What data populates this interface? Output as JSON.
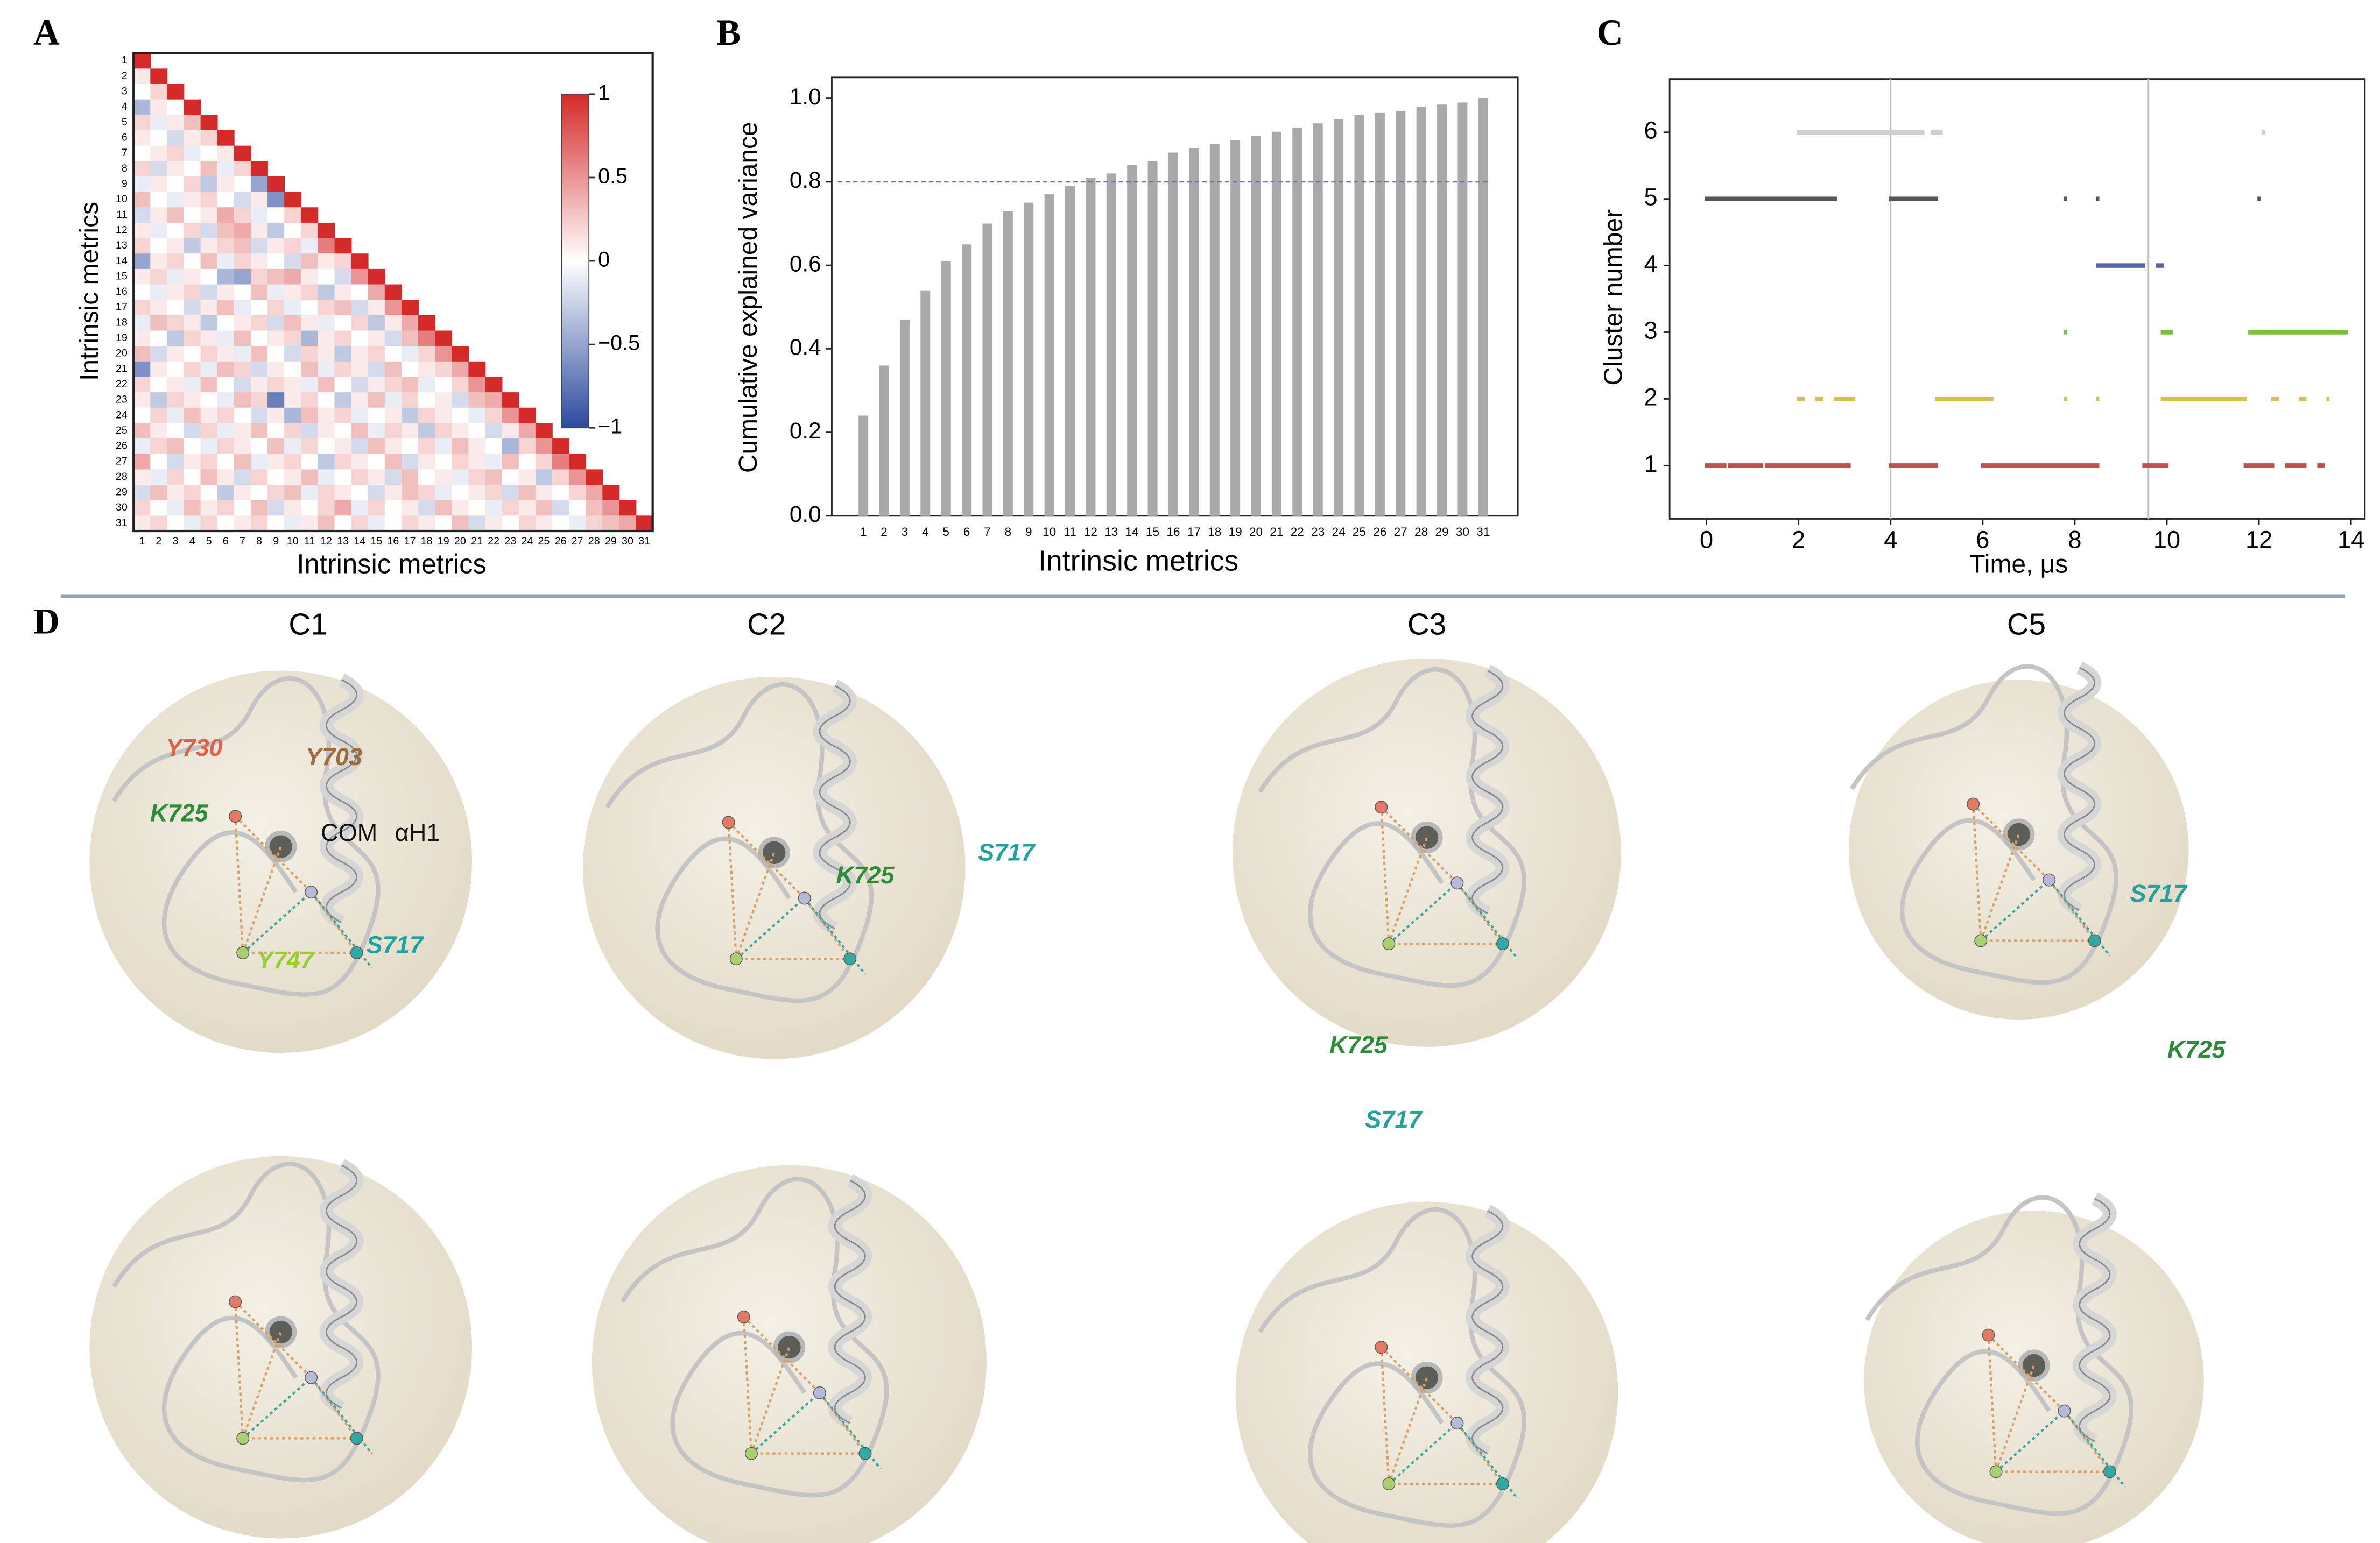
{
  "chart_data": [
    {
      "type": "heatmap",
      "panel": "A",
      "xlabel": "Intrinsic metrics",
      "ylabel": "Intrinsic metrics",
      "categories": [
        "1",
        "2",
        "3",
        "4",
        "5",
        "6",
        "7",
        "8",
        "9",
        "10",
        "11",
        "12",
        "13",
        "14",
        "15",
        "16",
        "17",
        "18",
        "19",
        "20",
        "21",
        "22",
        "23",
        "24",
        "25",
        "26",
        "27",
        "28",
        "29",
        "30",
        "31"
      ],
      "colorbar_ticks": [
        1,
        0.5,
        0,
        {
          "value": -0.5,
          "label": "−0.5"
        },
        {
          "value": -1,
          "label": "−1"
        }
      ],
      "clim": [
        -1,
        1
      ],
      "color_high": "#d42a2a",
      "color_low": "#2c4a9e",
      "values": [
        [
          1
        ],
        [
          0.1,
          1
        ],
        [
          0,
          0.2,
          1
        ],
        [
          -0.4,
          0.1,
          0,
          1
        ],
        [
          0.2,
          -0.1,
          0.1,
          0.3,
          1
        ],
        [
          0.1,
          0,
          -0.2,
          0.1,
          0.2,
          1
        ],
        [
          0,
          0.1,
          0.2,
          -0.1,
          0,
          0.1,
          1
        ],
        [
          0.2,
          -0.2,
          0.1,
          0,
          0.3,
          -0.1,
          0.2,
          1
        ],
        [
          -0.1,
          0.1,
          0,
          0.2,
          -0.3,
          0.1,
          0,
          -0.5,
          1
        ],
        [
          0.3,
          0,
          -0.1,
          0.1,
          0.2,
          0,
          -0.2,
          0.1,
          -0.6,
          1
        ],
        [
          -0.2,
          0.1,
          0.3,
          0,
          0.1,
          0.4,
          0.2,
          -0.1,
          0,
          0.2,
          1
        ],
        [
          0.1,
          -0.1,
          0,
          0.2,
          -0.2,
          0.3,
          0.4,
          0.1,
          -0.3,
          0,
          0.2,
          1
        ],
        [
          0.2,
          0,
          0.1,
          -0.3,
          0.1,
          0.2,
          0.3,
          -0.2,
          0.1,
          0.2,
          -0.1,
          0.6,
          1
        ],
        [
          -0.5,
          0.1,
          0.2,
          0,
          0.3,
          -0.1,
          0.2,
          0.1,
          0,
          -0.2,
          0.3,
          0.1,
          0.2,
          1
        ],
        [
          0.1,
          0.2,
          -0.1,
          0.1,
          0,
          -0.4,
          -0.5,
          0.2,
          0.3,
          0.4,
          0.1,
          0,
          -0.2,
          0.5,
          1
        ],
        [
          0,
          -0.1,
          0.1,
          0.2,
          -0.2,
          0.1,
          0,
          0.3,
          -0.1,
          0.1,
          0.2,
          -0.3,
          0.1,
          0,
          0.4,
          1
        ],
        [
          0.2,
          0.1,
          0,
          -0.2,
          0.1,
          0.3,
          -0.1,
          0,
          0.2,
          -0.1,
          0,
          0.2,
          0.3,
          -0.2,
          0.1,
          0.5,
          1
        ],
        [
          -0.1,
          0.3,
          0.2,
          0.1,
          -0.3,
          0,
          0.1,
          0.2,
          -0.2,
          0.3,
          0.1,
          -0.1,
          0,
          0.2,
          -0.3,
          0.1,
          0.4,
          1
        ],
        [
          0.1,
          0,
          -0.3,
          0.2,
          0.1,
          -0.1,
          0.3,
          0,
          0.1,
          0.2,
          -0.4,
          0.1,
          0.2,
          0,
          0.1,
          -0.2,
          0.3,
          0.6,
          1
        ],
        [
          0.3,
          -0.2,
          0.1,
          0,
          0.2,
          0.1,
          -0.1,
          0.3,
          0,
          -0.2,
          0.2,
          0.1,
          -0.3,
          0.1,
          0.2,
          0,
          -0.1,
          0.2,
          0.5,
          1
        ],
        [
          -0.6,
          0.1,
          0,
          0.2,
          -0.1,
          0.3,
          0.2,
          -0.2,
          0.1,
          0,
          0.3,
          -0.1,
          0.2,
          0.1,
          -0.2,
          0.3,
          0,
          0.1,
          0.2,
          0.4,
          1
        ],
        [
          0.2,
          0,
          0.1,
          -0.1,
          0.3,
          0,
          -0.2,
          0.1,
          0.2,
          0.1,
          -0.1,
          0.3,
          0,
          -0.2,
          0.1,
          0.2,
          0.3,
          -0.1,
          0,
          0.2,
          0.5,
          1
        ],
        [
          0.1,
          -0.3,
          0.2,
          0.1,
          0,
          -0.1,
          0.3,
          0.2,
          -0.7,
          0.1,
          0.2,
          0,
          -0.3,
          0.1,
          0.3,
          -0.1,
          0.2,
          0,
          0.1,
          -0.2,
          0.3,
          0.4,
          1
        ],
        [
          0,
          0.2,
          -0.1,
          0.3,
          0.1,
          0.2,
          0,
          -0.2,
          0.1,
          -0.4,
          0.3,
          0.1,
          0.2,
          -0.1,
          0,
          0.1,
          -0.3,
          0.2,
          0.1,
          0,
          -0.1,
          0.2,
          0.5,
          1
        ],
        [
          0.3,
          0.1,
          0,
          -0.2,
          0.2,
          -0.1,
          0.1,
          0.3,
          0,
          0.2,
          -0.2,
          0.1,
          0,
          0.3,
          -0.1,
          0.2,
          0.1,
          -0.3,
          0.2,
          0.1,
          0,
          -0.2,
          0.1,
          0.4,
          1
        ],
        [
          -0.1,
          0.2,
          0.3,
          0,
          -0.1,
          0.2,
          0.1,
          0,
          0.3,
          -0.1,
          0.2,
          0,
          0.1,
          -0.2,
          0.3,
          0.1,
          0,
          0.2,
          -0.1,
          0.3,
          0.1,
          0,
          -0.4,
          0.2,
          0.5,
          1
        ],
        [
          0.4,
          0,
          -0.2,
          0.1,
          0.2,
          0,
          0.3,
          -0.1,
          0.1,
          0.2,
          0,
          -0.3,
          0.2,
          0.1,
          0,
          0.3,
          -0.2,
          0.1,
          0,
          0.2,
          0.1,
          -0.1,
          0.3,
          0,
          0.2,
          0.6,
          1
        ],
        [
          0.1,
          -0.1,
          0.2,
          0,
          0.3,
          0.1,
          -0.2,
          0.2,
          0,
          0.1,
          0.3,
          -0.1,
          0,
          0.2,
          0.1,
          -0.2,
          0.3,
          0,
          0.1,
          -0.1,
          0.2,
          0.3,
          0,
          0.1,
          -0.3,
          0.2,
          0.5,
          1
        ],
        [
          -0.2,
          0.3,
          0.1,
          0.2,
          0,
          -0.3,
          0.1,
          0,
          0.2,
          0.3,
          -0.1,
          0.2,
          0.1,
          0,
          -0.2,
          0.1,
          0.3,
          0.2,
          -0.1,
          0,
          0.1,
          0.2,
          -0.2,
          0.3,
          0.1,
          0,
          0.2,
          0.4,
          1
        ],
        [
          0.2,
          0,
          -0.1,
          0.3,
          0.1,
          0.2,
          0,
          0.3,
          -0.2,
          0.1,
          0,
          0.2,
          0.4,
          -0.1,
          0.2,
          0,
          0.1,
          -0.2,
          0.3,
          0.1,
          0,
          -0.1,
          0.2,
          0.1,
          0.3,
          -0.2,
          0,
          0.3,
          0.5,
          1
        ],
        [
          0.1,
          0.2,
          0,
          -0.1,
          0.2,
          0,
          0.1,
          0.2,
          0,
          -0.1,
          0.1,
          0.3,
          0,
          0.2,
          -0.1,
          0,
          0.2,
          0.1,
          0,
          0.3,
          -0.2,
          0.1,
          0,
          0.2,
          0.1,
          0,
          -0.1,
          0.2,
          0.3,
          0.4,
          1
        ]
      ]
    },
    {
      "type": "bar",
      "panel": "B",
      "xlabel": "Intrinsic metrics",
      "ylabel": "Cumulative explained variance",
      "color": "#a9a9a9",
      "categories": [
        "1",
        "2",
        "3",
        "4",
        "5",
        "6",
        "7",
        "8",
        "9",
        "10",
        "11",
        "12",
        "13",
        "14",
        "15",
        "16",
        "17",
        "18",
        "19",
        "20",
        "21",
        "22",
        "23",
        "24",
        "25",
        "26",
        "27",
        "28",
        "29",
        "30",
        "31"
      ],
      "values": [
        0.24,
        0.36,
        0.47,
        0.54,
        0.61,
        0.65,
        0.7,
        0.73,
        0.75,
        0.77,
        0.79,
        0.81,
        0.82,
        0.84,
        0.85,
        0.87,
        0.88,
        0.89,
        0.9,
        0.91,
        0.92,
        0.93,
        0.94,
        0.95,
        0.96,
        0.965,
        0.97,
        0.98,
        0.985,
        0.99,
        1.0
      ],
      "threshold": 0.8,
      "threshold_color": "#6677bb",
      "ylim": [
        0,
        1.05
      ],
      "yticks": [
        {
          "value": 0,
          "label": "0.0"
        },
        0.2,
        0.4,
        0.6,
        0.8,
        {
          "value": 1,
          "label": "1.0"
        }
      ]
    },
    {
      "type": "timeline",
      "panel": "C",
      "xlabel": "Time, μs",
      "ylabel": "Cluster number",
      "xlim": [
        -0.8,
        14.3
      ],
      "xticks": [
        0,
        2,
        4,
        6,
        8,
        10,
        12,
        14
      ],
      "ylim": [
        0.2,
        6.8
      ],
      "yticks": [
        1,
        2,
        3,
        4,
        5,
        6
      ],
      "markers": [
        4,
        9.6
      ],
      "series": [
        {
          "cluster": 1,
          "color": "#c0504d",
          "intervals": [
            [
              0,
              0.4
            ],
            [
              0.5,
              1.2
            ],
            [
              1.3,
              3.1
            ],
            [
              4,
              5
            ],
            [
              6,
              8.5
            ],
            [
              9.5,
              10
            ],
            [
              11.7,
              12.3
            ],
            [
              12.6,
              13
            ],
            [
              13.3,
              13.4
            ]
          ]
        },
        {
          "cluster": 2,
          "color": "#d4c24a",
          "intervals": [
            [
              2,
              2.1
            ],
            [
              2.4,
              2.5
            ],
            [
              2.8,
              3.2
            ],
            [
              5,
              6.2
            ],
            [
              7.8,
              7.8
            ],
            [
              8.5,
              8.5
            ],
            [
              9.9,
              11.7
            ],
            [
              12.3,
              12.4
            ],
            [
              12.9,
              13
            ],
            [
              13.5,
              13.5
            ]
          ]
        },
        {
          "cluster": 3,
          "color": "#7cbf4a",
          "intervals": [
            [
              7.8,
              7.8
            ],
            [
              9.9,
              10.1
            ],
            [
              11.8,
              13.9
            ]
          ]
        },
        {
          "cluster": 4,
          "color": "#5a64a8",
          "intervals": [
            [
              8.5,
              9.5
            ],
            [
              9.8,
              9.9
            ]
          ]
        },
        {
          "cluster": 5,
          "color": "#555555",
          "intervals": [
            [
              0,
              2.8
            ],
            [
              4,
              5
            ],
            [
              7.8,
              7.8
            ],
            [
              8.5,
              8.5
            ],
            [
              12,
              12
            ]
          ]
        },
        {
          "cluster": 6,
          "color": "#cfcfcf",
          "intervals": [
            [
              2,
              4.7
            ],
            [
              4.9,
              5.1
            ],
            [
              12.1,
              12.1
            ]
          ]
        }
      ]
    }
  ],
  "panel_d": {
    "label": "D",
    "conformations": [
      {
        "title": "C1",
        "residues": [
          {
            "text": "Y730",
            "color": "#e0604c"
          },
          {
            "text": "Y703",
            "color": "#9c6c40"
          },
          {
            "text": "K725",
            "color": "#2e8b3a"
          },
          {
            "text": "COM",
            "color": "#111111"
          },
          {
            "text": "αH1",
            "color": "#111111"
          },
          {
            "text": "S717",
            "color": "#23a0a0"
          },
          {
            "text": "Y747",
            "color": "#9acd32"
          }
        ]
      },
      {
        "title": "C2",
        "residues": [
          {
            "text": "K725",
            "color": "#2e8b3a"
          },
          {
            "text": "S717",
            "color": "#23a0a0"
          }
        ]
      },
      {
        "title": "C3",
        "residues": [
          {
            "text": "K725",
            "color": "#2e8b3a"
          },
          {
            "text": "S717",
            "color": "#23a0a0"
          }
        ]
      },
      {
        "title": "C5",
        "residues": [
          {
            "text": "S717",
            "color": "#23a0a0"
          },
          {
            "text": "K725",
            "color": "#2e8b3a"
          }
        ]
      }
    ]
  }
}
